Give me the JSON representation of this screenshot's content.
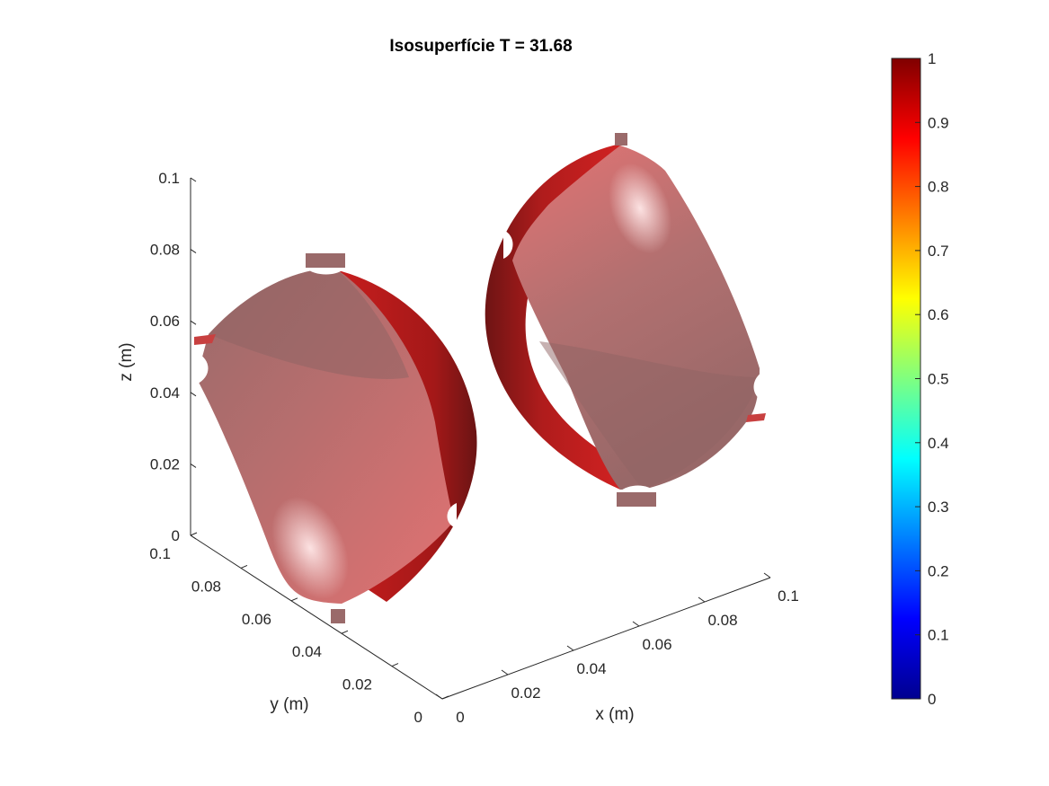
{
  "chart_data": {
    "type": "isosurface",
    "title": "Isosuperfície T = 31.68",
    "xlabel": "x (m)",
    "ylabel": "y (m)",
    "zlabel": "z (m)",
    "xlim": [
      0,
      0.1
    ],
    "ylim": [
      0,
      0.1
    ],
    "zlim": [
      0,
      0.1
    ],
    "x_ticks": [
      "0",
      "0.02",
      "0.04",
      "0.06",
      "0.08",
      "0.1"
    ],
    "y_ticks": [
      "0",
      "0.02",
      "0.04",
      "0.06",
      "0.08",
      "0.1"
    ],
    "z_ticks": [
      "0",
      "0.02",
      "0.04",
      "0.06",
      "0.08",
      "0.1"
    ],
    "colorbar": {
      "colormap": "jet",
      "range": [
        0,
        1
      ],
      "ticks": [
        "0",
        "0.1",
        "0.2",
        "0.3",
        "0.4",
        "0.5",
        "0.6",
        "0.7",
        "0.8",
        "0.9",
        "1"
      ]
    },
    "surface_color": "#e06060",
    "shadow_color": "#a01c1c",
    "face_color": "#9a6464",
    "grid": false
  }
}
